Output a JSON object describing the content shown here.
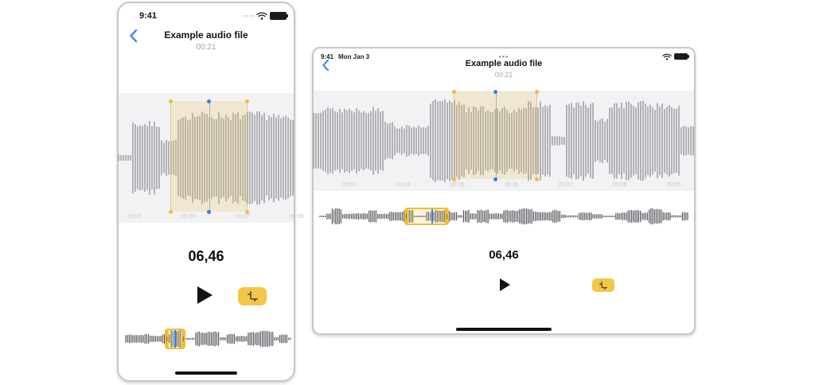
{
  "phone": {
    "status": {
      "time": "9:41"
    },
    "nav": {
      "title": "Example audio file",
      "subtitle": "00:21"
    },
    "ruler_labels": [
      "00:05",
      "00:06",
      "00:07",
      "00:08"
    ],
    "selected_duration": "06,46"
  },
  "tablet": {
    "status": {
      "time": "9:41",
      "date": "Mon Jan 3",
      "menu": "•••"
    },
    "nav": {
      "title": "Example audio file",
      "subtitle": "00:21"
    },
    "ruler_labels": [
      "00:03",
      "00:04",
      "00:05",
      "00:06",
      "00:07",
      "00:08",
      "00:09"
    ],
    "selected_duration": "06,46"
  },
  "icons": {
    "back": "chevron-left",
    "wifi": "wifi",
    "battery": "battery-full",
    "cellular": "cellular-signal-dots",
    "play": "play-triangle",
    "crop": "crop"
  },
  "colors": {
    "handle_yellow": "#F0BD37",
    "selection_fill": "rgba(236,197,96,0.24)",
    "selection_edge": "rgba(220,174,62,0.55)",
    "playhead_blue": "#2F7CF6",
    "wave_gray": "#9B9CA3",
    "mini_wave_gray": "#54575D",
    "crop_button_bg": "#F3C647",
    "strip_bg": "#F2F2F4",
    "back_blue": "#3F8BF2"
  }
}
